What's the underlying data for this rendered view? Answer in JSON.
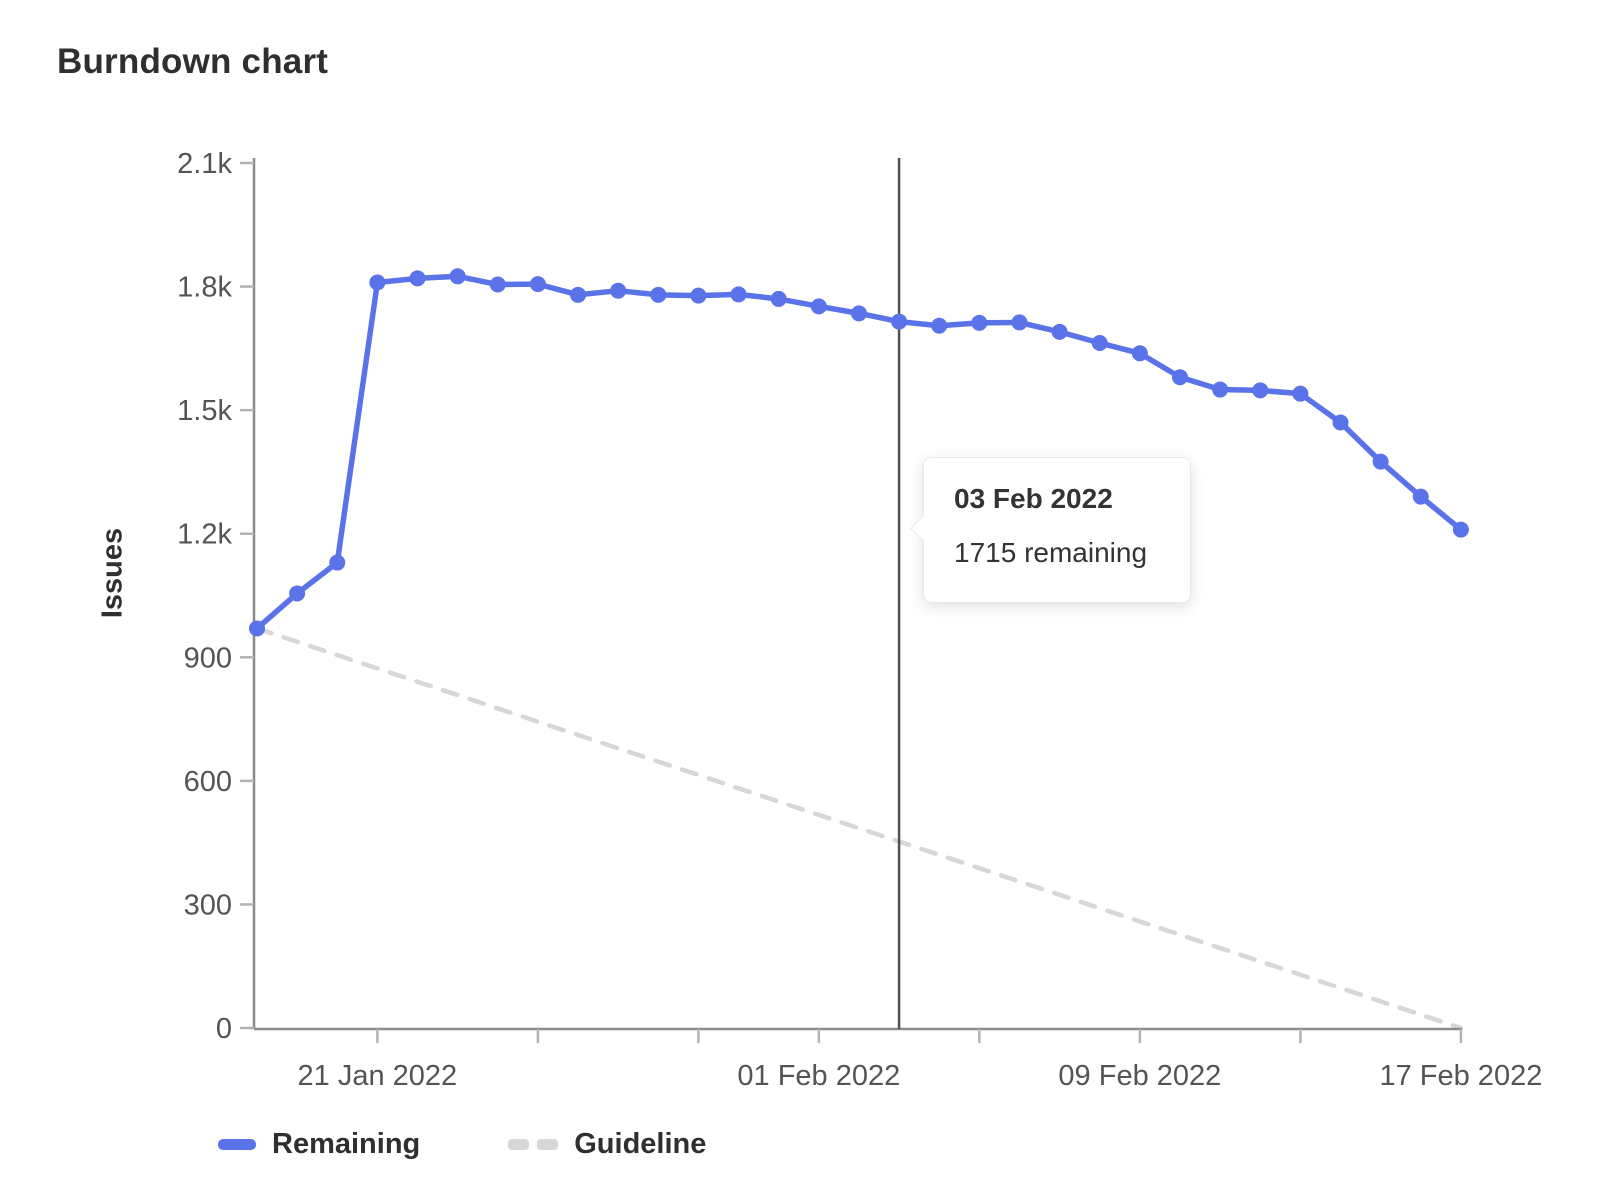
{
  "title": "Burndown chart",
  "tooltip": {
    "date": "03 Feb 2022",
    "value_text": "1715 remaining"
  },
  "legend": {
    "items": [
      {
        "label": "Remaining",
        "style": "solid"
      },
      {
        "label": "Guideline",
        "style": "dashed"
      }
    ]
  },
  "colors": {
    "remaining": "#5b73e8",
    "guideline": "#d7d7d7",
    "axis": "#8a8a8a",
    "tick": "#b3b3b3",
    "hover_line": "#525252",
    "text_tick": "#545454",
    "text_dark": "#2f2f2f"
  },
  "chart_data": {
    "type": "line",
    "title": "Burndown chart",
    "xlabel": "",
    "ylabel": "Issues",
    "ylim": [
      0,
      2100
    ],
    "grid": false,
    "legend_position": "bottom",
    "x": [
      "18 Jan 2022",
      "19 Jan 2022",
      "20 Jan 2022",
      "21 Jan 2022",
      "22 Jan 2022",
      "23 Jan 2022",
      "24 Jan 2022",
      "25 Jan 2022",
      "26 Jan 2022",
      "27 Jan 2022",
      "28 Jan 2022",
      "29 Jan 2022",
      "30 Jan 2022",
      "31 Jan 2022",
      "01 Feb 2022",
      "02 Feb 2022",
      "03 Feb 2022",
      "04 Feb 2022",
      "05 Feb 2022",
      "06 Feb 2022",
      "07 Feb 2022",
      "08 Feb 2022",
      "09 Feb 2022",
      "10 Feb 2022",
      "11 Feb 2022",
      "12 Feb 2022",
      "13 Feb 2022",
      "14 Feb 2022",
      "15 Feb 2022",
      "16 Feb 2022",
      "17 Feb 2022"
    ],
    "series": [
      {
        "name": "Remaining",
        "style": "solid",
        "values": [
          970,
          1055,
          1130,
          1810,
          1820,
          1825,
          1805,
          1806,
          1780,
          1790,
          1780,
          1778,
          1781,
          1770,
          1752,
          1735,
          1715,
          1705,
          1712,
          1713,
          1690,
          1663,
          1638,
          1580,
          1550,
          1548,
          1540,
          1470,
          1375,
          1290,
          1210
        ]
      },
      {
        "name": "Guideline",
        "style": "dashed",
        "start_value": 970,
        "end_value": 0
      }
    ],
    "y_ticks": [
      {
        "value": 0,
        "label": "0"
      },
      {
        "value": 300,
        "label": "300"
      },
      {
        "value": 600,
        "label": "600"
      },
      {
        "value": 900,
        "label": "900"
      },
      {
        "value": 1200,
        "label": "1.2k"
      },
      {
        "value": 1500,
        "label": "1.5k"
      },
      {
        "value": 1800,
        "label": "1.8k"
      },
      {
        "value": 2100,
        "label": "2.1k"
      }
    ],
    "x_ticks": [
      {
        "date": "21 Jan 2022",
        "label": "21 Jan 2022"
      },
      {
        "date": "25 Jan 2022",
        "label": ""
      },
      {
        "date": "29 Jan 2022",
        "label": ""
      },
      {
        "date": "01 Feb 2022",
        "label": "01 Feb 2022"
      },
      {
        "date": "05 Feb 2022",
        "label": ""
      },
      {
        "date": "09 Feb 2022",
        "label": "09 Feb 2022"
      },
      {
        "date": "13 Feb 2022",
        "label": ""
      },
      {
        "date": "17 Feb 2022",
        "label": "17 Feb 2022"
      }
    ],
    "hover": {
      "date": "03 Feb 2022",
      "remaining": 1715
    }
  }
}
